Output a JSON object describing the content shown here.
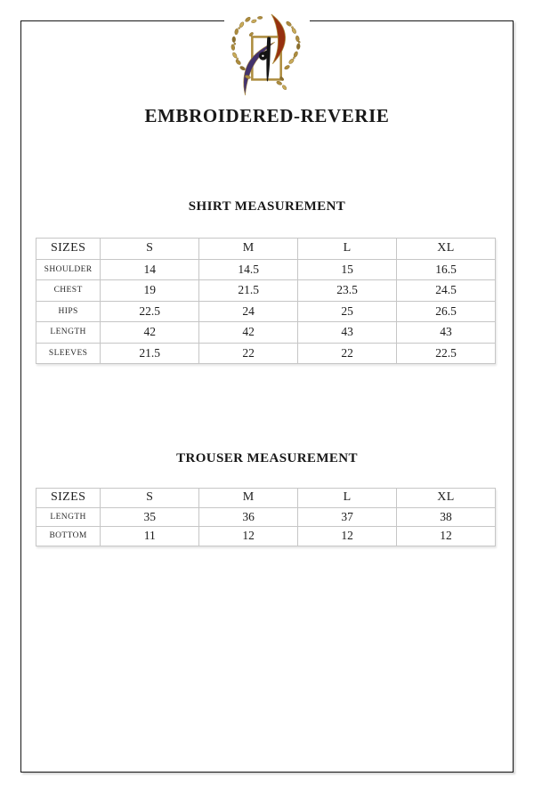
{
  "brand": {
    "title": "EMBROIDERED-REVERIE"
  },
  "logo": {
    "name": "ornate-calligraphy-emblem",
    "colors": {
      "gold": "#ad8c3e",
      "gold_light": "#c9ab5a",
      "gold_dark": "#8a6e2e",
      "maroon": "#96300f",
      "indigo": "#43336e",
      "ink": "#141414"
    }
  },
  "sections": [
    {
      "heading": "SHIRT MEASUREMENT",
      "table": {
        "header": [
          "SIZES",
          "S",
          "M",
          "L",
          "XL"
        ],
        "rows": [
          {
            "label": "SHOULDER",
            "values": [
              "14",
              "14.5",
              "15",
              "16.5"
            ]
          },
          {
            "label": "CHEST",
            "values": [
              "19",
              "21.5",
              "23.5",
              "24.5"
            ]
          },
          {
            "label": "HIPS",
            "values": [
              "22.5",
              "24",
              "25",
              "26.5"
            ]
          },
          {
            "label": "LENGTH",
            "values": [
              "42",
              "42",
              "43",
              "43"
            ]
          },
          {
            "label": "SLEEVES",
            "values": [
              "21.5",
              "22",
              "22",
              "22.5"
            ]
          }
        ]
      }
    },
    {
      "heading": "TROUSER MEASUREMENT",
      "table": {
        "header": [
          "SIZES",
          "S",
          "M",
          "L",
          "XL"
        ],
        "rows": [
          {
            "label": "LENGTH",
            "values": [
              "35",
              "36",
              "37",
              "38"
            ]
          },
          {
            "label": "BOTTOM",
            "values": [
              "11",
              "12",
              "12",
              "12"
            ]
          }
        ]
      }
    }
  ]
}
